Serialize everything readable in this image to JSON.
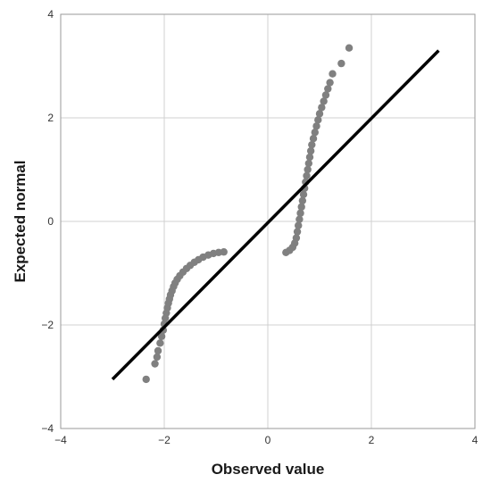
{
  "chart_data": {
    "type": "scatter",
    "title": "",
    "xlabel": "Observed value",
    "ylabel": "Expected normal",
    "xlim": [
      -4,
      4
    ],
    "ylim": [
      -4,
      4
    ],
    "xticks": [
      -4,
      -2,
      0,
      2,
      4
    ],
    "yticks": [
      -4,
      -2,
      0,
      2,
      4
    ],
    "xtick_labels": [
      "−4",
      "−2",
      "0",
      "2",
      "4"
    ],
    "ytick_labels": [
      "−4",
      "−2",
      "0",
      "2",
      "4"
    ],
    "grid": true,
    "point_color": "#808080",
    "line_color": "#000000",
    "reference_line": {
      "x": [
        -3.0,
        3.3
      ],
      "y": [
        -3.05,
        3.3
      ]
    },
    "points": [
      {
        "x": -2.35,
        "y": -3.05
      },
      {
        "x": -2.18,
        "y": -2.75
      },
      {
        "x": -2.14,
        "y": -2.62
      },
      {
        "x": -2.12,
        "y": -2.5
      },
      {
        "x": -2.08,
        "y": -2.35
      },
      {
        "x": -2.05,
        "y": -2.22
      },
      {
        "x": -2.02,
        "y": -2.1
      },
      {
        "x": -2.0,
        "y": -1.98
      },
      {
        "x": -1.98,
        "y": -1.87
      },
      {
        "x": -1.96,
        "y": -1.77
      },
      {
        "x": -1.94,
        "y": -1.67
      },
      {
        "x": -1.92,
        "y": -1.58
      },
      {
        "x": -1.9,
        "y": -1.5
      },
      {
        "x": -1.88,
        "y": -1.42
      },
      {
        "x": -1.85,
        "y": -1.34
      },
      {
        "x": -1.82,
        "y": -1.26
      },
      {
        "x": -1.79,
        "y": -1.19
      },
      {
        "x": -1.75,
        "y": -1.12
      },
      {
        "x": -1.7,
        "y": -1.05
      },
      {
        "x": -1.64,
        "y": -0.98
      },
      {
        "x": -1.57,
        "y": -0.91
      },
      {
        "x": -1.5,
        "y": -0.85
      },
      {
        "x": -1.42,
        "y": -0.79
      },
      {
        "x": -1.34,
        "y": -0.74
      },
      {
        "x": -1.25,
        "y": -0.69
      },
      {
        "x": -1.15,
        "y": -0.65
      },
      {
        "x": -1.05,
        "y": -0.62
      },
      {
        "x": -0.95,
        "y": -0.6
      },
      {
        "x": -0.85,
        "y": -0.59
      },
      {
        "x": 0.35,
        "y": -0.6
      },
      {
        "x": 0.42,
        "y": -0.56
      },
      {
        "x": 0.48,
        "y": -0.5
      },
      {
        "x": 0.52,
        "y": -0.42
      },
      {
        "x": 0.55,
        "y": -0.32
      },
      {
        "x": 0.57,
        "y": -0.2
      },
      {
        "x": 0.59,
        "y": -0.08
      },
      {
        "x": 0.61,
        "y": 0.04
      },
      {
        "x": 0.63,
        "y": 0.16
      },
      {
        "x": 0.65,
        "y": 0.28
      },
      {
        "x": 0.67,
        "y": 0.4
      },
      {
        "x": 0.69,
        "y": 0.52
      },
      {
        "x": 0.71,
        "y": 0.64
      },
      {
        "x": 0.73,
        "y": 0.76
      },
      {
        "x": 0.75,
        "y": 0.88
      },
      {
        "x": 0.77,
        "y": 1.0
      },
      {
        "x": 0.79,
        "y": 1.12
      },
      {
        "x": 0.81,
        "y": 1.24
      },
      {
        "x": 0.83,
        "y": 1.36
      },
      {
        "x": 0.85,
        "y": 1.48
      },
      {
        "x": 0.88,
        "y": 1.6
      },
      {
        "x": 0.91,
        "y": 1.72
      },
      {
        "x": 0.94,
        "y": 1.84
      },
      {
        "x": 0.97,
        "y": 1.96
      },
      {
        "x": 1.0,
        "y": 2.08
      },
      {
        "x": 1.04,
        "y": 2.2
      },
      {
        "x": 1.08,
        "y": 2.32
      },
      {
        "x": 1.12,
        "y": 2.44
      },
      {
        "x": 1.16,
        "y": 2.56
      },
      {
        "x": 1.2,
        "y": 2.68
      },
      {
        "x": 1.25,
        "y": 2.85
      },
      {
        "x": 1.42,
        "y": 3.05
      },
      {
        "x": 1.57,
        "y": 3.35
      }
    ]
  }
}
